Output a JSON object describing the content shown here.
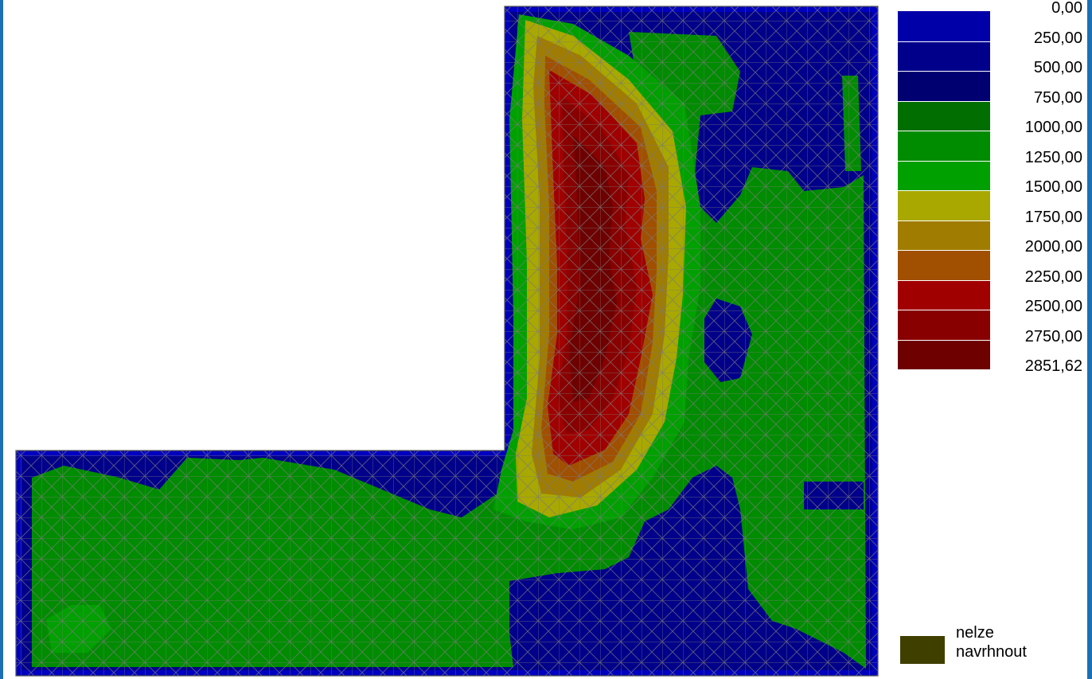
{
  "legend": {
    "labels": [
      "0,00",
      "250,00",
      "500,00",
      "750,00",
      "1000,00",
      "1250,00",
      "1500,00",
      "1750,00",
      "2000,00",
      "2250,00",
      "2500,00",
      "2750,00",
      "2851,62"
    ],
    "colors": [
      "#0000a8",
      "#00008a",
      "#000070",
      "#006e00",
      "#008c00",
      "#00a000",
      "#a8a800",
      "#a07c00",
      "#a05000",
      "#a00000",
      "#880000",
      "#6e0000"
    ]
  },
  "no_design": {
    "label": "nelze navrhnout",
    "color": "#3f3f00"
  },
  "colors": {
    "frame": "#1a6fb5",
    "mesh": "#7a7a7a",
    "edge_blue": "#0000d0"
  }
}
